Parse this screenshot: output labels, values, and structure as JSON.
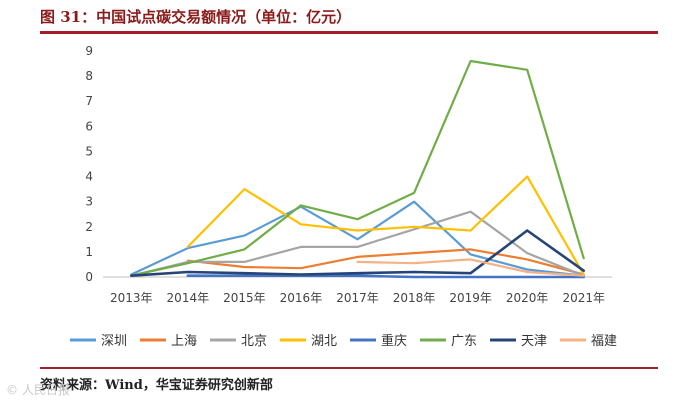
{
  "title": "图 31：中国试点碳交易额情况（单位：亿元）",
  "source": "资料来源：Wind，华宝证券研究创新部",
  "watermark": "© 人民日报",
  "chart_data": {
    "type": "line",
    "title": "图 31：中国试点碳交易额情况（单位：亿元）",
    "xlabel": "",
    "ylabel": "",
    "ylim": [
      0,
      9
    ],
    "yticks": [
      0,
      1,
      2,
      3,
      4,
      5,
      6,
      7,
      8,
      9
    ],
    "categories": [
      "2013年",
      "2014年",
      "2015年",
      "2016年",
      "2017年",
      "2018年",
      "2019年",
      "2020年",
      "2021年"
    ],
    "legend_position": "bottom",
    "series": [
      {
        "name": "深圳",
        "color": "#5b9bd5",
        "values": [
          0.1,
          1.15,
          1.65,
          2.8,
          1.5,
          3.0,
          0.9,
          0.3,
          0.05
        ]
      },
      {
        "name": "上海",
        "color": "#ed7d31",
        "values": [
          null,
          0.65,
          0.4,
          0.35,
          0.8,
          0.95,
          1.1,
          0.7,
          0.1
        ]
      },
      {
        "name": "北京",
        "color": "#a5a5a5",
        "values": [
          0.05,
          0.6,
          0.6,
          1.2,
          1.2,
          1.9,
          2.6,
          0.95,
          0.05
        ]
      },
      {
        "name": "湖北",
        "color": "#ffc000",
        "values": [
          null,
          1.2,
          3.5,
          2.1,
          1.85,
          2.0,
          1.85,
          4.0,
          0.1
        ]
      },
      {
        "name": "重庆",
        "color": "#4472c4",
        "values": [
          null,
          0.05,
          0.05,
          0.05,
          0.05,
          0.0,
          0.0,
          0.0,
          0.0
        ]
      },
      {
        "name": "广东",
        "color": "#70ad47",
        "values": [
          0.05,
          0.55,
          1.1,
          2.85,
          2.3,
          3.35,
          8.6,
          8.25,
          0.75
        ]
      },
      {
        "name": "天津",
        "color": "#264478",
        "values": [
          0.05,
          0.2,
          0.15,
          0.1,
          0.15,
          0.2,
          0.15,
          1.85,
          0.25
        ]
      },
      {
        "name": "福建",
        "color": "#f4b183",
        "values": [
          null,
          null,
          null,
          null,
          0.6,
          0.55,
          0.7,
          0.2,
          0.05
        ]
      }
    ]
  }
}
